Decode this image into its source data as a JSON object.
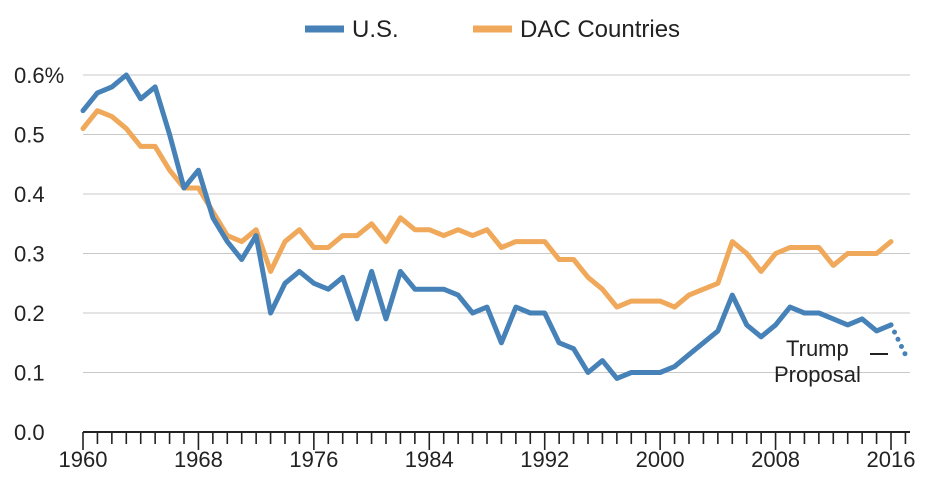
{
  "chart_data": {
    "type": "line",
    "title": "",
    "xlabel": "",
    "ylabel": "",
    "ylim": [
      0,
      0.6
    ],
    "y_ticks": [
      "0.0",
      "0.1",
      "0.2",
      "0.3",
      "0.4",
      "0.5",
      "0.6%"
    ],
    "x_ticks": [
      "1960",
      "1968",
      "1976",
      "1984",
      "1992",
      "2000",
      "2008",
      "2016"
    ],
    "grid": "horizontal",
    "legend_position": "top-center",
    "x": [
      1960,
      1961,
      1962,
      1963,
      1964,
      1965,
      1966,
      1967,
      1968,
      1969,
      1970,
      1971,
      1972,
      1973,
      1974,
      1975,
      1976,
      1977,
      1978,
      1979,
      1980,
      1981,
      1982,
      1983,
      1984,
      1985,
      1986,
      1987,
      1988,
      1989,
      1990,
      1991,
      1992,
      1993,
      1994,
      1995,
      1996,
      1997,
      1998,
      1999,
      2000,
      2001,
      2002,
      2003,
      2004,
      2005,
      2006,
      2007,
      2008,
      2009,
      2010,
      2011,
      2012,
      2013,
      2014,
      2015,
      2016
    ],
    "series": [
      {
        "name": "U.S.",
        "color": "#4682b8",
        "values": [
          0.54,
          0.57,
          0.58,
          0.6,
          0.56,
          0.58,
          0.5,
          0.41,
          0.44,
          0.36,
          0.32,
          0.29,
          0.33,
          0.2,
          0.25,
          0.27,
          0.25,
          0.24,
          0.26,
          0.19,
          0.27,
          0.19,
          0.27,
          0.24,
          0.24,
          0.24,
          0.23,
          0.2,
          0.21,
          0.15,
          0.21,
          0.2,
          0.2,
          0.15,
          0.14,
          0.1,
          0.12,
          0.09,
          0.1,
          0.1,
          0.1,
          0.11,
          0.13,
          0.15,
          0.17,
          0.23,
          0.18,
          0.16,
          0.18,
          0.21,
          0.2,
          0.2,
          0.19,
          0.18,
          0.19,
          0.17,
          0.18
        ]
      },
      {
        "name": "DAC Countries",
        "color": "#f0a85a",
        "values": [
          0.51,
          0.54,
          0.53,
          0.51,
          0.48,
          0.48,
          0.44,
          0.41,
          0.41,
          0.37,
          0.33,
          0.32,
          0.34,
          0.27,
          0.32,
          0.34,
          0.31,
          0.31,
          0.33,
          0.33,
          0.35,
          0.32,
          0.36,
          0.34,
          0.34,
          0.33,
          0.34,
          0.33,
          0.34,
          0.31,
          0.32,
          0.32,
          0.32,
          0.29,
          0.29,
          0.26,
          0.24,
          0.21,
          0.22,
          0.22,
          0.22,
          0.21,
          0.23,
          0.24,
          0.25,
          0.32,
          0.3,
          0.27,
          0.3,
          0.31,
          0.31,
          0.31,
          0.28,
          0.3,
          0.3,
          0.3,
          0.32
        ]
      }
    ],
    "projection": {
      "series": "U.S.",
      "style": "dotted",
      "from": {
        "x": 2016,
        "y": 0.18
      },
      "to": {
        "x": 2017,
        "y": 0.13
      }
    },
    "annotation": {
      "line1": "Trump",
      "line2": "Proposal"
    }
  }
}
